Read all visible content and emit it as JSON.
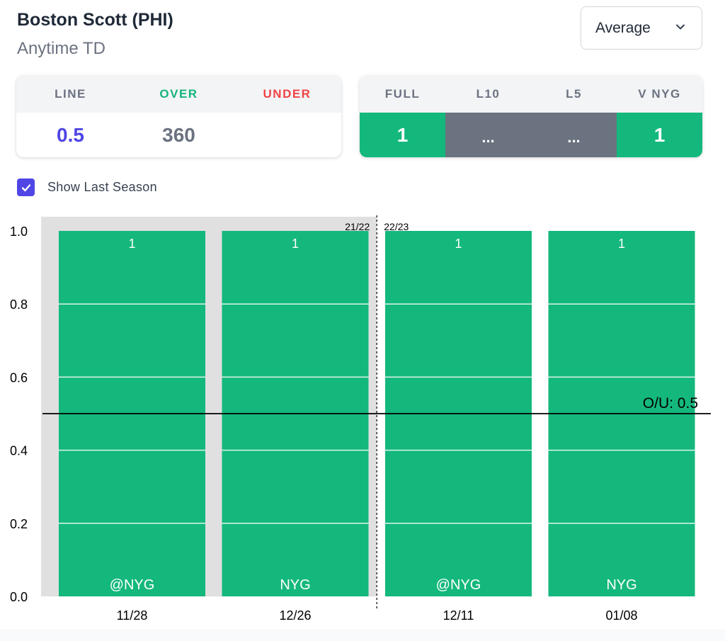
{
  "header": {
    "player": "Boston Scott (PHI)",
    "market": "Anytime TD"
  },
  "dropdown": {
    "selected": "Average"
  },
  "line_card": {
    "headers": {
      "line": "LINE",
      "over": "OVER",
      "under": "UNDER"
    },
    "values": {
      "line": "0.5",
      "over": "360",
      "under": ""
    }
  },
  "split_card": {
    "headers": [
      "FULL",
      "L10",
      "L5",
      "V NYG"
    ],
    "values": [
      "1",
      "...",
      "...",
      "1"
    ]
  },
  "show_last_season": {
    "label": "Show Last Season",
    "checked": true
  },
  "colors": {
    "accent": "#4f46e5",
    "over_green": "#14b87c",
    "under_red": "#ef4444",
    "muted_gray": "#6b7280",
    "last_season_shade": "#e0e0e0"
  },
  "chart_data": {
    "type": "bar",
    "categories": [
      "11/28",
      "12/26",
      "12/11",
      "01/08"
    ],
    "values": [
      1,
      1,
      1,
      1
    ],
    "value_labels": [
      "1",
      "1",
      "1",
      "1"
    ],
    "opponents": [
      "@NYG",
      "NYG",
      "@NYG",
      "NYG"
    ],
    "seasons": [
      "21/22",
      "21/22",
      "22/23",
      "22/23"
    ],
    "season_labels": [
      "21/22",
      "22/23"
    ],
    "ylim": [
      0,
      1
    ],
    "yticks": [
      "0.0",
      "0.2",
      "0.4",
      "0.6",
      "0.8",
      "1.0"
    ],
    "line_value": 0.5,
    "line_label": "O/U: 0.5",
    "grid": true,
    "xlabel": "",
    "ylabel": "",
    "title": ""
  }
}
